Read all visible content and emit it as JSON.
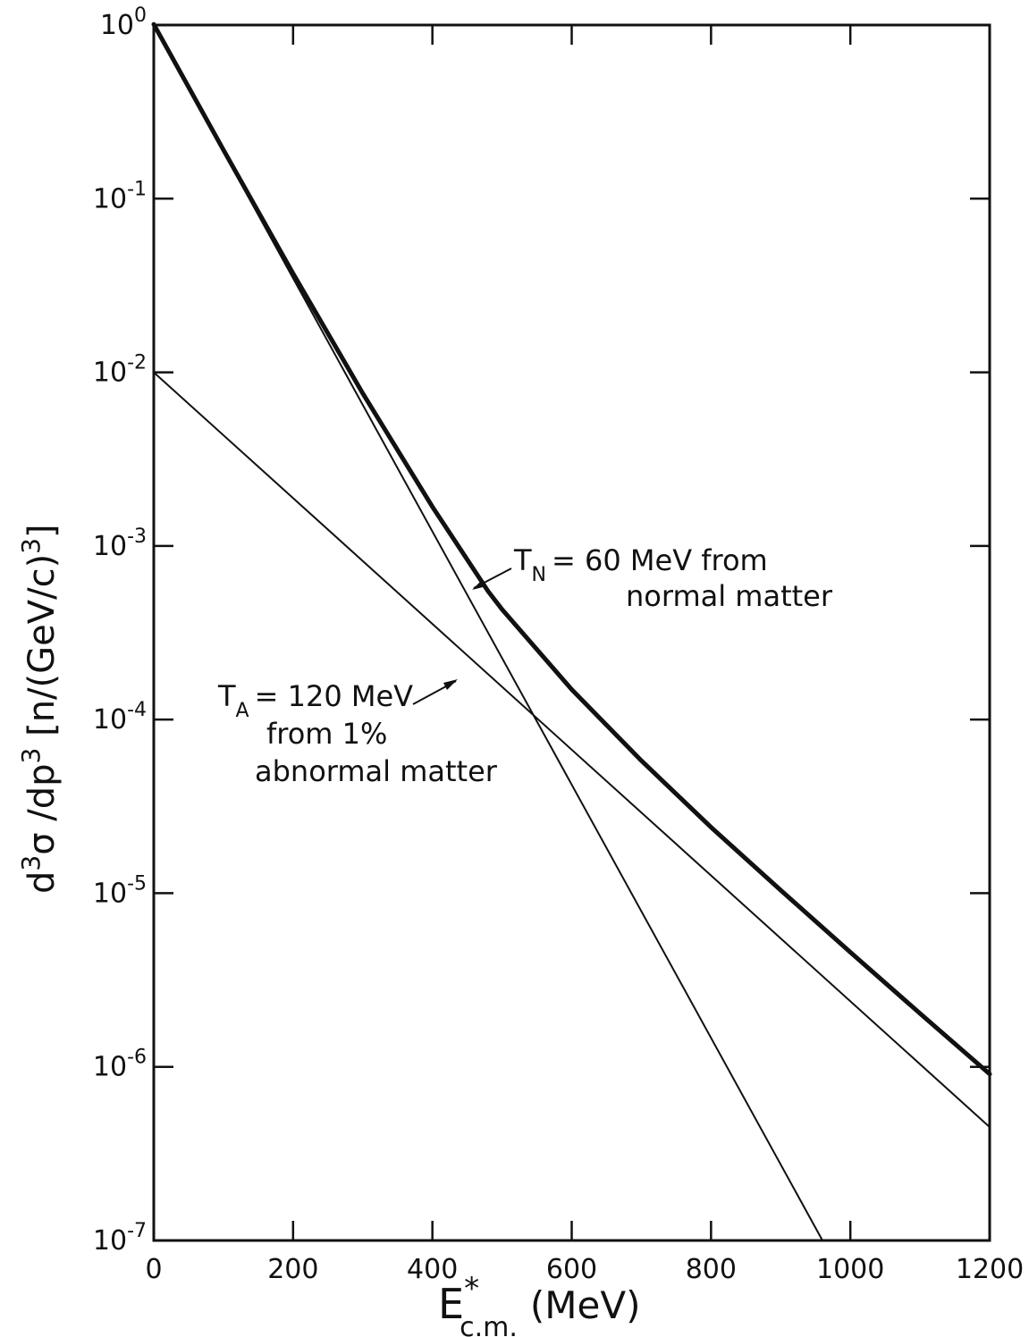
{
  "chart_data": {
    "type": "line",
    "y_scale": "log",
    "xlim": [
      0,
      1200
    ],
    "ylim": [
      1e-07,
      1
    ],
    "grid": false,
    "x_ticks": [
      0,
      200,
      400,
      600,
      800,
      1000,
      1200
    ],
    "x_tick_labels": [
      "0",
      "200",
      "400",
      "600",
      "800",
      "1000",
      "1200"
    ],
    "y_ticks": [
      1,
      0.1,
      0.01,
      0.001,
      0.0001,
      1e-05,
      1e-06,
      1e-07
    ],
    "y_tick_labels": [
      {
        "base": "10",
        "exp": "0"
      },
      {
        "base": "10",
        "exp": "-1"
      },
      {
        "base": "10",
        "exp": "-2"
      },
      {
        "base": "10",
        "exp": "-3"
      },
      {
        "base": "10",
        "exp": "-4"
      },
      {
        "base": "10",
        "exp": "-5"
      },
      {
        "base": "10",
        "exp": "-6"
      },
      {
        "base": "10",
        "exp": "-7"
      }
    ],
    "xlabel": {
      "main": "E",
      "star": "*",
      "sub": "c.m.",
      "unit": "(MeV)"
    },
    "ylabel": {
      "parts": [
        "d",
        "3",
        "σ /dp",
        "3",
        " [n/(GeV/c)",
        "3",
        "]"
      ]
    },
    "series": [
      {
        "style": "thin",
        "values": [
          [
            0,
            1
          ],
          [
            960,
            1e-07
          ]
        ]
      },
      {
        "style": "thin",
        "values": [
          [
            0,
            0.01
          ],
          [
            1200,
            4.5e-07
          ]
        ]
      },
      {
        "style": "thick",
        "values": [
          [
            0,
            1.01
          ],
          [
            100,
            0.191
          ],
          [
            200,
            0.0371
          ],
          [
            300,
            0.00756
          ],
          [
            400,
            0.00168
          ],
          [
            480,
            0.000548
          ],
          [
            500,
            0.000431
          ],
          [
            600,
            0.000149
          ],
          [
            700,
            5.8e-05
          ],
          [
            800,
            2.4e-05
          ],
          [
            900,
            1.04e-05
          ],
          [
            1000,
            4.57e-06
          ],
          [
            1100,
            2.03e-06
          ],
          [
            1200,
            9.1e-07
          ]
        ]
      }
    ],
    "annotations": {
      "tn": {
        "symbol": "T",
        "sub": "N",
        "line1": "= 60 MeV from",
        "line2": "normal matter"
      },
      "ta": {
        "symbol": "T",
        "sub": "A",
        "line1": "= 120 MeV",
        "line2": "from 1%",
        "line3": "abnormal matter"
      }
    }
  }
}
